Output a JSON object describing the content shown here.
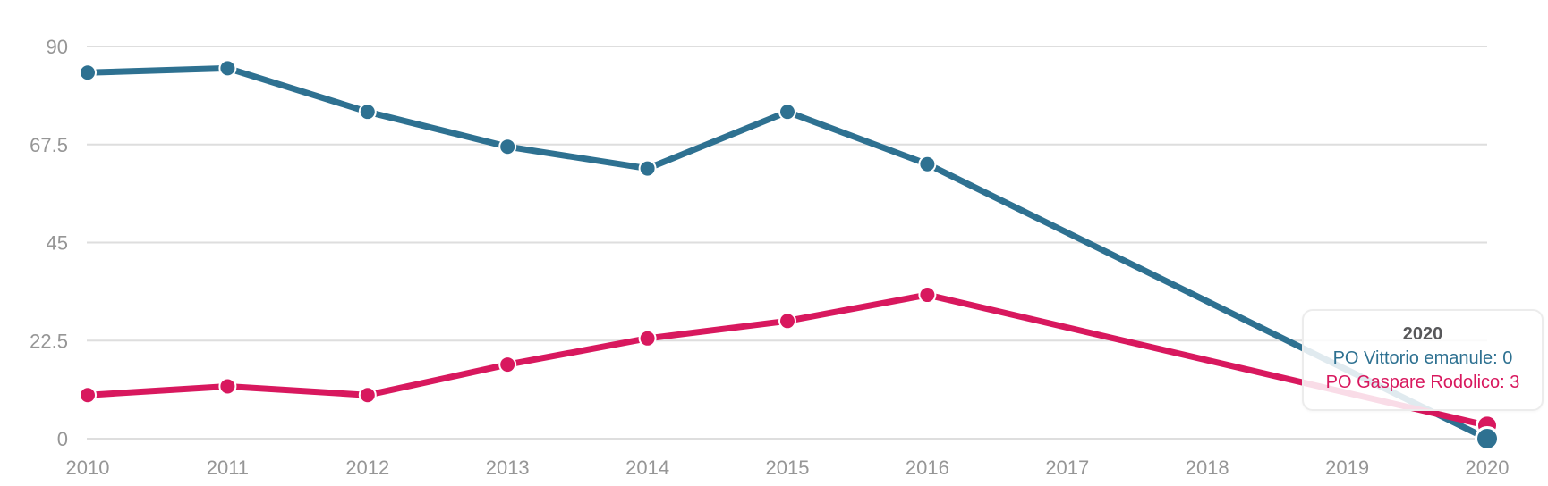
{
  "chart_data": {
    "type": "line",
    "title": "",
    "xlabel": "",
    "ylabel": "",
    "categories": [
      "2010",
      "2011",
      "2012",
      "2013",
      "2014",
      "2015",
      "2016",
      "2017",
      "2018",
      "2019",
      "2020"
    ],
    "series": [
      {
        "name": "PO Vittorio emanule",
        "color": "#2e7191",
        "values": [
          84,
          85,
          75,
          67,
          62,
          75,
          63,
          null,
          null,
          null,
          0
        ]
      },
      {
        "name": "PO Gaspare Rodolico",
        "color": "#d8185e",
        "values": [
          10,
          12,
          10,
          17,
          23,
          27,
          33,
          null,
          null,
          null,
          3
        ]
      }
    ],
    "ylim": [
      0,
      90
    ],
    "yticks": [
      0,
      22.5,
      45,
      67.5,
      90
    ],
    "ytick_labels": [
      "0",
      "22.5",
      "45",
      "67.5",
      "90"
    ],
    "grid": "horizontal",
    "legend": "none",
    "hovered_category": "2020"
  },
  "tooltip": {
    "title": "2020",
    "items": [
      {
        "label": "PO Vittorio emanule",
        "value": "0",
        "text": "PO Vittorio emanule: 0",
        "color": "#2e7191"
      },
      {
        "label": "PO Gaspare Rodolico",
        "value": "3",
        "text": "PO Gaspare Rodolico: 3",
        "color": "#d8185e"
      }
    ]
  },
  "colors": {
    "background": "#ffffff",
    "gridline": "#dedede",
    "axis_text": "#969696",
    "tooltip_title": "#58585a",
    "tooltip_border": "#ececec",
    "point_border": "#ffffff"
  }
}
